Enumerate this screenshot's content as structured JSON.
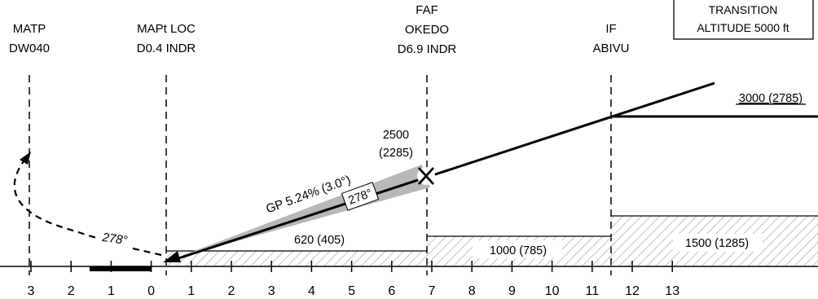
{
  "transition_box": {
    "line1": "TRANSITION",
    "line2": "ALTITUDE 5000 ft"
  },
  "fixes": {
    "matp": {
      "line1": "MATP",
      "line2": "DW040"
    },
    "mapt": {
      "line1": "MAPt LOC",
      "line2": "D0.4 INDR"
    },
    "faf": {
      "line1": "FAF",
      "line2": "OKEDO",
      "line3": "D6.9 INDR"
    },
    "if": {
      "line1": "IF",
      "line2": "ABIVU"
    }
  },
  "altitudes": {
    "if_alt": "3000 (2785)",
    "faf_alt_line1": "2500",
    "faf_alt_line2": "(2285)",
    "mda_segment": "620 (405)",
    "faf_segment": "1000 (785)",
    "if_segment": "1500 (1285)"
  },
  "path": {
    "glidepath": "GP 5.24% (3.0°)",
    "final_course": "278°",
    "missed_course": "278°"
  },
  "distance_scale": {
    "ticks": [
      "3",
      "2",
      "1",
      "0",
      "1",
      "2",
      "3",
      "4",
      "5",
      "6",
      "7",
      "8",
      "9",
      "10",
      "11",
      "12",
      "13"
    ]
  }
}
